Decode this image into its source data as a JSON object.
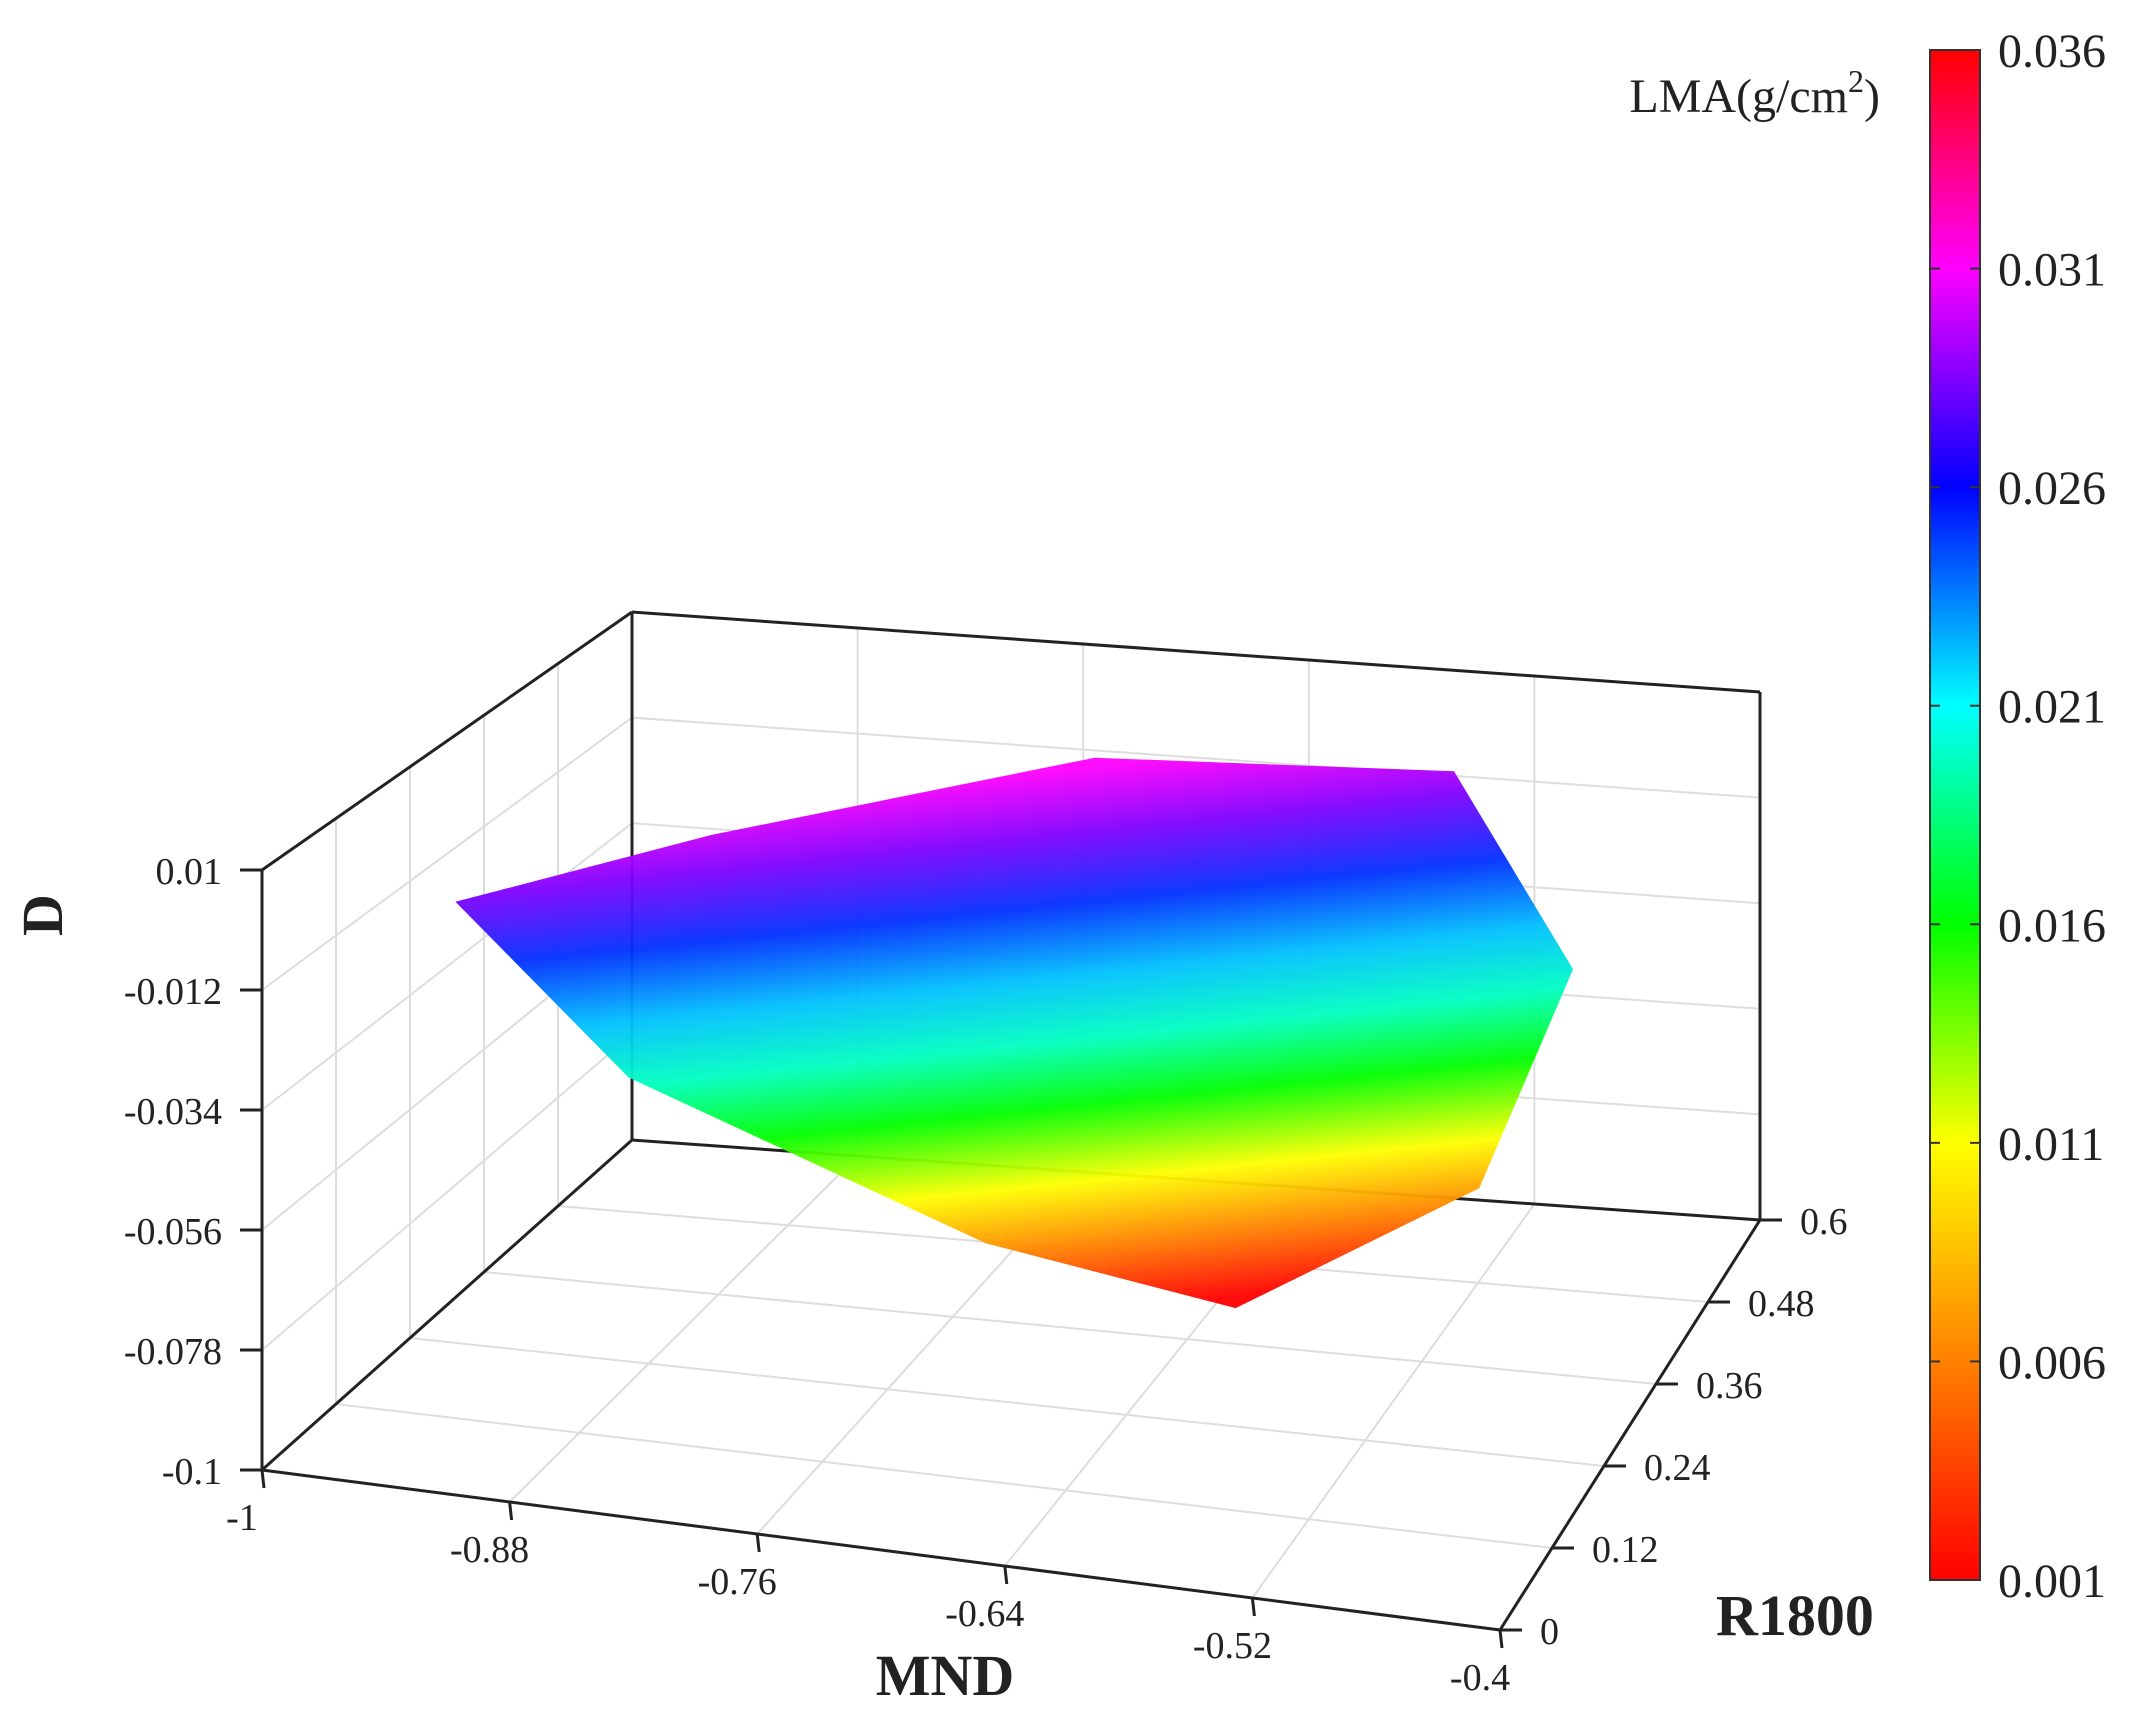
{
  "chart_data": {
    "type": "scatter3d",
    "title": "",
    "axes": {
      "x": {
        "label": "MND",
        "range": [
          -1,
          -0.4
        ],
        "ticks": [
          "-1",
          "-0.88",
          "-0.76",
          "-0.64",
          "-0.52",
          "-0.4"
        ]
      },
      "y": {
        "label": "R1800",
        "range": [
          0,
          0.6
        ],
        "ticks": [
          "0",
          "0.12",
          "0.24",
          "0.36",
          "0.48",
          "0.6"
        ]
      },
      "z": {
        "label": "D",
        "range": [
          -0.1,
          0.01
        ],
        "ticks": [
          "-0.1",
          "-0.078",
          "-0.056",
          "-0.034",
          "-0.012",
          "0.01"
        ]
      }
    },
    "colorbar": {
      "title": "LMA(g/cm",
      "title_superscript": "2",
      "title_suffix": ")",
      "range": [
        0.001,
        0.036
      ],
      "ticks": [
        "0.036",
        "0.031",
        "0.026",
        "0.021",
        "0.016",
        "0.011",
        "0.006",
        "0.001"
      ],
      "colormap": [
        "#ff0000",
        "#ff8000",
        "#ffff00",
        "#00ff00",
        "#00ffff",
        "#0000ff",
        "#ff00ff",
        "#ff0000"
      ]
    },
    "grid": true,
    "point_cloud_outline": [
      {
        "MND": -0.95,
        "R1800": 0.15,
        "D": -0.006
      },
      {
        "MND": -0.86,
        "R1800": 0.28,
        "D": -0.001
      },
      {
        "MND": -0.72,
        "R1800": 0.48,
        "D": 0.0
      },
      {
        "MND": -0.55,
        "R1800": 0.55,
        "D": -0.005
      },
      {
        "MND": -0.48,
        "R1800": 0.52,
        "D": -0.04
      },
      {
        "MND": -0.5,
        "R1800": 0.4,
        "D": -0.07
      },
      {
        "MND": -0.6,
        "R1800": 0.3,
        "D": -0.085
      },
      {
        "MND": -0.7,
        "R1800": 0.2,
        "D": -0.065
      },
      {
        "MND": -0.85,
        "R1800": 0.1,
        "D": -0.03
      }
    ]
  }
}
